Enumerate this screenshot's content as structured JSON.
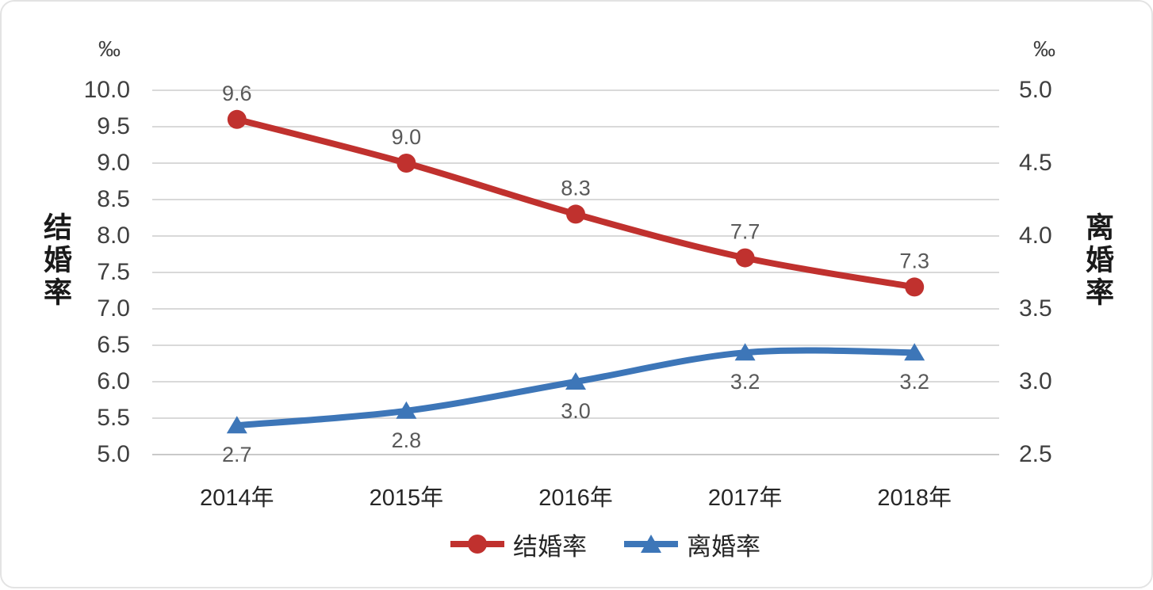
{
  "chart_data": {
    "type": "line",
    "categories": [
      "2014年",
      "2015年",
      "2016年",
      "2017年",
      "2018年"
    ],
    "series": [
      {
        "id": "marriage-rate",
        "name": "结婚率",
        "axis": "left",
        "color": "#c0312e",
        "marker": "circle",
        "values": [
          9.6,
          9.0,
          8.3,
          7.7,
          7.3
        ],
        "labels": [
          "9.6",
          "9.0",
          "8.3",
          "7.7",
          "7.3"
        ],
        "label_position": "above"
      },
      {
        "id": "divorce-rate",
        "name": "离婚率",
        "axis": "right",
        "color": "#3d76b8",
        "marker": "triangle",
        "values": [
          2.7,
          2.8,
          3.0,
          3.2,
          3.2
        ],
        "labels": [
          "2.7",
          "2.8",
          "3.0",
          "3.2",
          "3.2"
        ],
        "label_position": "below"
      }
    ],
    "left_axis": {
      "unit": "‰",
      "title": "结婚率",
      "min": 5.0,
      "max": 10.0,
      "step": 0.5,
      "tick_labels": [
        "10.0",
        "9.5",
        "9.0",
        "8.5",
        "8.0",
        "7.5",
        "7.0",
        "6.5",
        "6.0",
        "5.5",
        "5.0"
      ]
    },
    "right_axis": {
      "unit": "‰",
      "title": "离婚率",
      "min": 2.5,
      "max": 5.0,
      "step": 0.5,
      "tick_labels": [
        "5.0",
        "4.5",
        "4.0",
        "3.5",
        "3.0",
        "2.5"
      ]
    },
    "grid": true,
    "legend_position": "bottom",
    "colors": {
      "grid": "#d9d9d9",
      "axis_line": "#c9c9c9",
      "data_label": "#595959",
      "tick_label": "#3f3f3f",
      "category_label": "#262626",
      "axis_title": "#1a1a1a"
    }
  }
}
